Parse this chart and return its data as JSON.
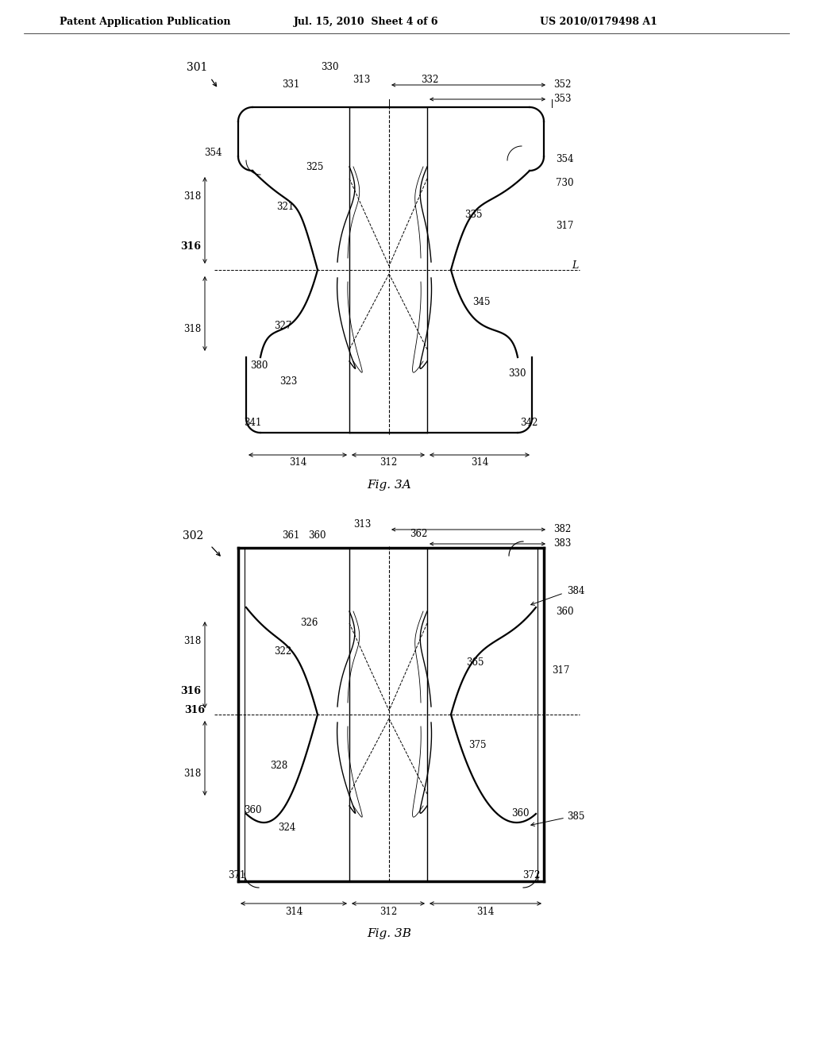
{
  "bg_color": "#ffffff",
  "header_left": "Patent Application Publication",
  "header_mid": "Jul. 15, 2010  Sheet 4 of 6",
  "header_right": "US 2010/0179498 A1",
  "fig_a_label": "Fig. 3A",
  "fig_b_label": "Fig. 3B"
}
